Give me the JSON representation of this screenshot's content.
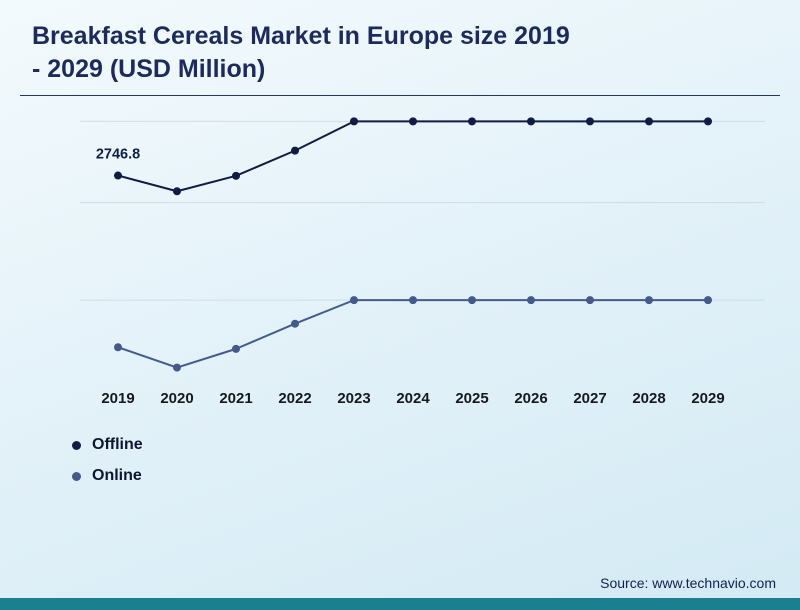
{
  "title": {
    "line1": "Breakfast Cereals Market in Europe size 2019",
    "line2": "- 2029 (USD Million)"
  },
  "source_text": "Source: www.technavio.com",
  "legend": [
    {
      "label": "Offline",
      "color": "#101c45"
    },
    {
      "label": "Online",
      "color": "#44598c"
    }
  ],
  "colors": {
    "title": "#1c2a5e",
    "bottom_bar": "#1a7f8e",
    "gridline": "#c7d8e2",
    "tick_label": "#18181f",
    "annotation": "#0f1d4a"
  },
  "chart_data": {
    "type": "line",
    "title": "Breakfast Cereals Market in Europe size 2019 - 2029 (USD Million)",
    "x": [
      "2019",
      "2020",
      "2021",
      "2022",
      "2023",
      "2024",
      "2025",
      "2026",
      "2027",
      "2028",
      "2029"
    ],
    "series": [
      {
        "name": "Offline",
        "color": "#101c45",
        "values": [
          2746.8,
          2650,
          2745,
          2900,
          3080,
          3080,
          3080,
          3080,
          3080,
          3080,
          3080
        ]
      },
      {
        "name": "Online",
        "color": "#44598c",
        "values": [
          1690,
          1565,
          1680,
          1835,
          1980,
          1980,
          1980,
          1980,
          1980,
          1980,
          1980
        ]
      }
    ],
    "xlabel": "",
    "ylabel": "",
    "ylim": [
      1550,
      3150
    ],
    "grid": true,
    "gridline_values": [
      3080,
      2580,
      1980
    ],
    "legend_position": "bottom-left",
    "annotations": [
      {
        "x": "2019",
        "series": "Offline",
        "text": "2746.8"
      }
    ]
  }
}
